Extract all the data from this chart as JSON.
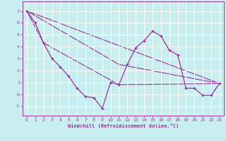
{
  "background_color": "#c8eef0",
  "grid_color": "#ffffff",
  "line_color": "#993399",
  "marker_color": "#993399",
  "xlabel": "Windchill (Refroidissement éolien,°C)",
  "xlabel_color": "#993399",
  "tick_color": "#993399",
  "spine_color": "#993399",
  "xlim": [
    -0.5,
    23.5
  ],
  "ylim": [
    -1.8,
    7.8
  ],
  "xticks": [
    0,
    1,
    2,
    3,
    4,
    5,
    6,
    7,
    8,
    9,
    10,
    11,
    12,
    13,
    14,
    15,
    16,
    17,
    18,
    19,
    20,
    21,
    22,
    23
  ],
  "yticks": [
    -1,
    0,
    1,
    2,
    3,
    4,
    5,
    6,
    7
  ],
  "line1_x": [
    0,
    1,
    2,
    3,
    4,
    5,
    6,
    7,
    8,
    9,
    10,
    11,
    12,
    13,
    14,
    15,
    16,
    17,
    18,
    19,
    20,
    21,
    22,
    23
  ],
  "line1_y": [
    7.0,
    6.0,
    4.3,
    3.0,
    2.3,
    1.5,
    0.5,
    -0.2,
    -0.3,
    -1.2,
    1.0,
    0.8,
    2.5,
    3.9,
    4.5,
    5.3,
    4.9,
    3.7,
    3.3,
    0.5,
    0.5,
    -0.1,
    -0.1,
    0.9
  ],
  "line2_x": [
    0,
    2,
    11,
    23
  ],
  "line2_y": [
    7.0,
    4.3,
    0.8,
    0.9
  ],
  "line3_x": [
    0,
    11,
    23
  ],
  "line3_y": [
    7.0,
    2.5,
    0.9
  ],
  "line4_x": [
    0,
    23
  ],
  "line4_y": [
    7.0,
    0.9
  ],
  "tick_fontsize": 4.5,
  "xlabel_fontsize": 5.0
}
